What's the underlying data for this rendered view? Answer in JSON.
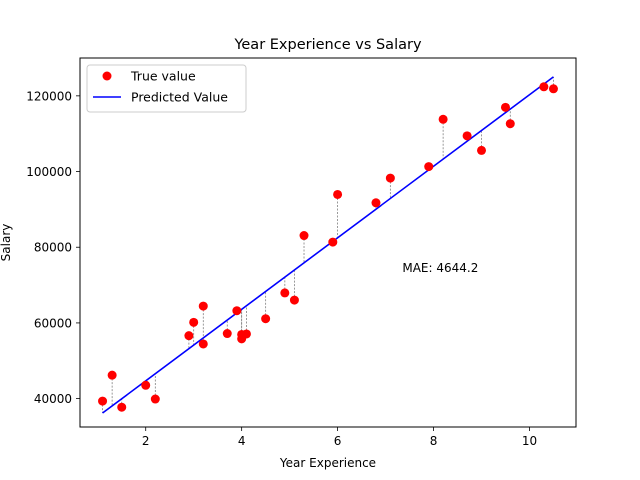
{
  "chart_data": {
    "type": "scatter",
    "title": "Year Experience vs Salary",
    "xlabel": "Year Experience",
    "ylabel": "Salary",
    "xlim": [
      0.63,
      10.97
    ],
    "ylim": [
      32500,
      130000
    ],
    "xticks": [
      2,
      4,
      6,
      8,
      10
    ],
    "xtick_labels": [
      "2",
      "4",
      "6",
      "8",
      "10"
    ],
    "yticks": [
      40000,
      60000,
      80000,
      100000,
      120000
    ],
    "ytick_labels": [
      "40000",
      "60000",
      "80000",
      "100000",
      "120000"
    ],
    "annotation": "MAE: 4644.2",
    "annotation_pos": [
      7.35,
      73500
    ],
    "legend_position": "upper left",
    "series": [
      {
        "name": "True value",
        "kind": "scatter",
        "color": "#ff0000",
        "points": [
          [
            1.1,
            39343
          ],
          [
            1.3,
            46205
          ],
          [
            1.5,
            37731
          ],
          [
            2.0,
            43525
          ],
          [
            2.2,
            39891
          ],
          [
            2.9,
            56642
          ],
          [
            3.0,
            60150
          ],
          [
            3.2,
            54445
          ],
          [
            3.2,
            64445
          ],
          [
            3.7,
            57189
          ],
          [
            3.9,
            63218
          ],
          [
            4.0,
            55794
          ],
          [
            4.0,
            56957
          ],
          [
            4.1,
            57081
          ],
          [
            4.5,
            61111
          ],
          [
            4.9,
            67938
          ],
          [
            5.1,
            66029
          ],
          [
            5.3,
            83088
          ],
          [
            5.9,
            81363
          ],
          [
            6.0,
            93940
          ],
          [
            6.8,
            91738
          ],
          [
            7.1,
            98273
          ],
          [
            7.9,
            101302
          ],
          [
            8.2,
            113812
          ],
          [
            8.7,
            109431
          ],
          [
            9.0,
            105582
          ],
          [
            9.5,
            116969
          ],
          [
            9.6,
            112635
          ],
          [
            10.3,
            122391
          ],
          [
            10.5,
            121872
          ]
        ]
      },
      {
        "name": "Predicted Value",
        "kind": "line",
        "color": "#0000ff",
        "slope": 9450,
        "intercept": 25792
      }
    ],
    "residual_line_color": "#808080"
  }
}
